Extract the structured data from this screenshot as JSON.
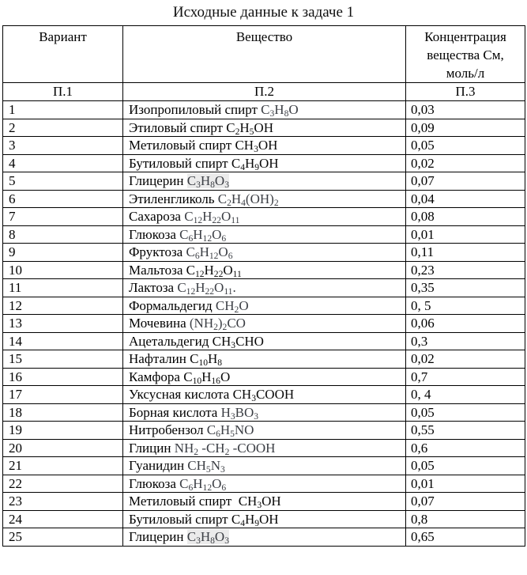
{
  "page": {
    "title": "Исходные данные к задаче 1"
  },
  "table": {
    "column_headers": [
      "Вариант",
      "Вещество",
      "Концентрация вещества См, моль/л"
    ],
    "index_row": [
      "П.1",
      "П.2",
      "П.3"
    ],
    "subscript_marker_note": "underscore+digits in formula = subscript",
    "rows": [
      {
        "variant": "1",
        "name": "Изопропиловый спирт",
        "formula": "C_3H_8O",
        "formula_style": "math",
        "formula_highlight": false,
        "concentration": "0,03"
      },
      {
        "variant": "2",
        "name": "Этиловый спирт",
        "formula": "C_2H_5OH",
        "formula_style": "plain",
        "formula_highlight": false,
        "concentration": "0,09"
      },
      {
        "variant": "3",
        "name": "Метиловый спирт",
        "formula": "CH_3OH",
        "formula_style": "plain",
        "formula_highlight": false,
        "concentration": "0,05"
      },
      {
        "variant": "4",
        "name": "Бутиловый спирт",
        "formula": "C_4H_9OH",
        "formula_style": "plain",
        "formula_highlight": false,
        "concentration": "0,02"
      },
      {
        "variant": "5",
        "name": "Глицерин",
        "formula": "C_3H_8O_3",
        "formula_style": "math",
        "formula_highlight": true,
        "concentration": "0,07"
      },
      {
        "variant": "6",
        "name": "Этиленгликоль",
        "formula": "C_2H_4(OH)_2",
        "formula_style": "math",
        "formula_highlight": false,
        "concentration": "0,04"
      },
      {
        "variant": "7",
        "name": "Сахароза",
        "formula": "C_12H_22O_11",
        "formula_style": "math",
        "formula_highlight": false,
        "concentration": "0,08"
      },
      {
        "variant": "8",
        "name": "Глюкоза",
        "formula": "C_6H_12O_6",
        "formula_style": "math",
        "formula_highlight": false,
        "concentration": "0,01"
      },
      {
        "variant": "9",
        "name": "Фруктоза",
        "formula": "C_6H_12O_6",
        "formula_style": "math",
        "formula_highlight": false,
        "concentration": "0,11"
      },
      {
        "variant": "10",
        "name": "Мальтоза",
        "formula": "C_12H_22O_11",
        "formula_style": "plain",
        "formula_highlight": false,
        "concentration": "0,23"
      },
      {
        "variant": "11",
        "name": "Лактоза",
        "formula": "C_12H_22O_11.",
        "formula_style": "math",
        "formula_highlight": false,
        "concentration": "0,35"
      },
      {
        "variant": "12",
        "name": "Формальдегид",
        "formula": "CH_2O",
        "formula_style": "math",
        "formula_highlight": false,
        "concentration": "0, 5"
      },
      {
        "variant": "13",
        "name": "Мочевина",
        "formula": "(NH_2)_2CO",
        "formula_style": "math",
        "formula_highlight": false,
        "concentration": "0,06"
      },
      {
        "variant": "14",
        "name": "Ацетальдегид",
        "formula": "CH_3CHO",
        "formula_style": "plain",
        "formula_highlight": false,
        "concentration": "0,3"
      },
      {
        "variant": "15",
        "name": "Нафталин",
        "formula": "C_10H_8",
        "formula_style": "plain",
        "formula_highlight": false,
        "concentration": "0,02"
      },
      {
        "variant": "16",
        "name": "Камфора",
        "formula": "C_10H_16O",
        "formula_style": "plain",
        "formula_highlight": false,
        "concentration": "0,7"
      },
      {
        "variant": "17",
        "name": "Уксусная кислота",
        "formula": "CH_3COOH",
        "formula_style": "plain",
        "formula_highlight": false,
        "concentration": "0, 4"
      },
      {
        "variant": "18",
        "name": "Борная кислота",
        "formula": "H_3BO_3",
        "formula_style": "math",
        "formula_highlight": false,
        "concentration": "0,05"
      },
      {
        "variant": "19",
        "name": "Нитробензол",
        "formula": "C_6H_5NO",
        "formula_style": "math",
        "formula_highlight": false,
        "concentration": "0,55"
      },
      {
        "variant": "20",
        "name": "Глицин",
        "formula": "NH_2 -CH_2 -COOH",
        "formula_style": "math",
        "formula_highlight": false,
        "concentration": "0,6"
      },
      {
        "variant": "21",
        "name": "Гуанидин",
        "formula": "CH_5N_3",
        "formula_style": "math",
        "formula_highlight": false,
        "concentration": "0,05"
      },
      {
        "variant": "22",
        "name": "Глюкоза",
        "formula": "C_6H_12O_6",
        "formula_style": "math",
        "formula_highlight": false,
        "concentration": "0,01"
      },
      {
        "variant": "23",
        "name": "Метиловый спирт ",
        "formula": "CH_3OH",
        "formula_style": "plain",
        "formula_highlight": false,
        "concentration": "0,07"
      },
      {
        "variant": "24",
        "name": "Бутиловый спирт",
        "formula": "C_4H_9OH",
        "formula_style": "plain",
        "formula_highlight": false,
        "concentration": "0,8"
      },
      {
        "variant": "25",
        "name": "Глицерин",
        "formula": "C_3H_8O_3",
        "formula_style": "math",
        "formula_highlight": true,
        "concentration": "0,65"
      }
    ]
  }
}
